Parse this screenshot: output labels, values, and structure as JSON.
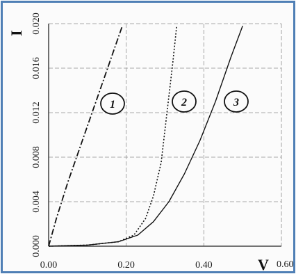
{
  "chart_data": {
    "type": "line",
    "title": "",
    "xlabel": "V",
    "ylabel": "I",
    "xlim": [
      0,
      0.6
    ],
    "ylim": [
      0,
      0.02
    ],
    "x_ticks": [
      "0.00",
      "0.20",
      "0.40",
      "0.60"
    ],
    "y_ticks": [
      "0.000",
      "0.004",
      "0.008",
      "0.012",
      "0.016",
      "0.020"
    ],
    "grid": true,
    "series": [
      {
        "label": "1",
        "style": "dashed",
        "x": [
          0,
          0.02,
          0.05,
          0.08,
          0.11,
          0.14,
          0.17,
          0.19
        ],
        "y": [
          0,
          0.0025,
          0.0058,
          0.0088,
          0.0118,
          0.0148,
          0.0178,
          0.0198
        ]
      },
      {
        "label": "2",
        "style": "dotted",
        "x": [
          0,
          0.1,
          0.18,
          0.22,
          0.25,
          0.27,
          0.29,
          0.3,
          0.31,
          0.32,
          0.33
        ],
        "y": [
          0,
          0.0001,
          0.0004,
          0.001,
          0.0025,
          0.0045,
          0.0075,
          0.0105,
          0.0135,
          0.0165,
          0.0198
        ]
      },
      {
        "label": "3",
        "style": "solid",
        "x": [
          0,
          0.1,
          0.18,
          0.23,
          0.27,
          0.31,
          0.35,
          0.39,
          0.43,
          0.47,
          0.5
        ],
        "y": [
          0,
          0.0001,
          0.0004,
          0.001,
          0.0022,
          0.004,
          0.0065,
          0.0095,
          0.013,
          0.017,
          0.0198
        ]
      }
    ]
  }
}
